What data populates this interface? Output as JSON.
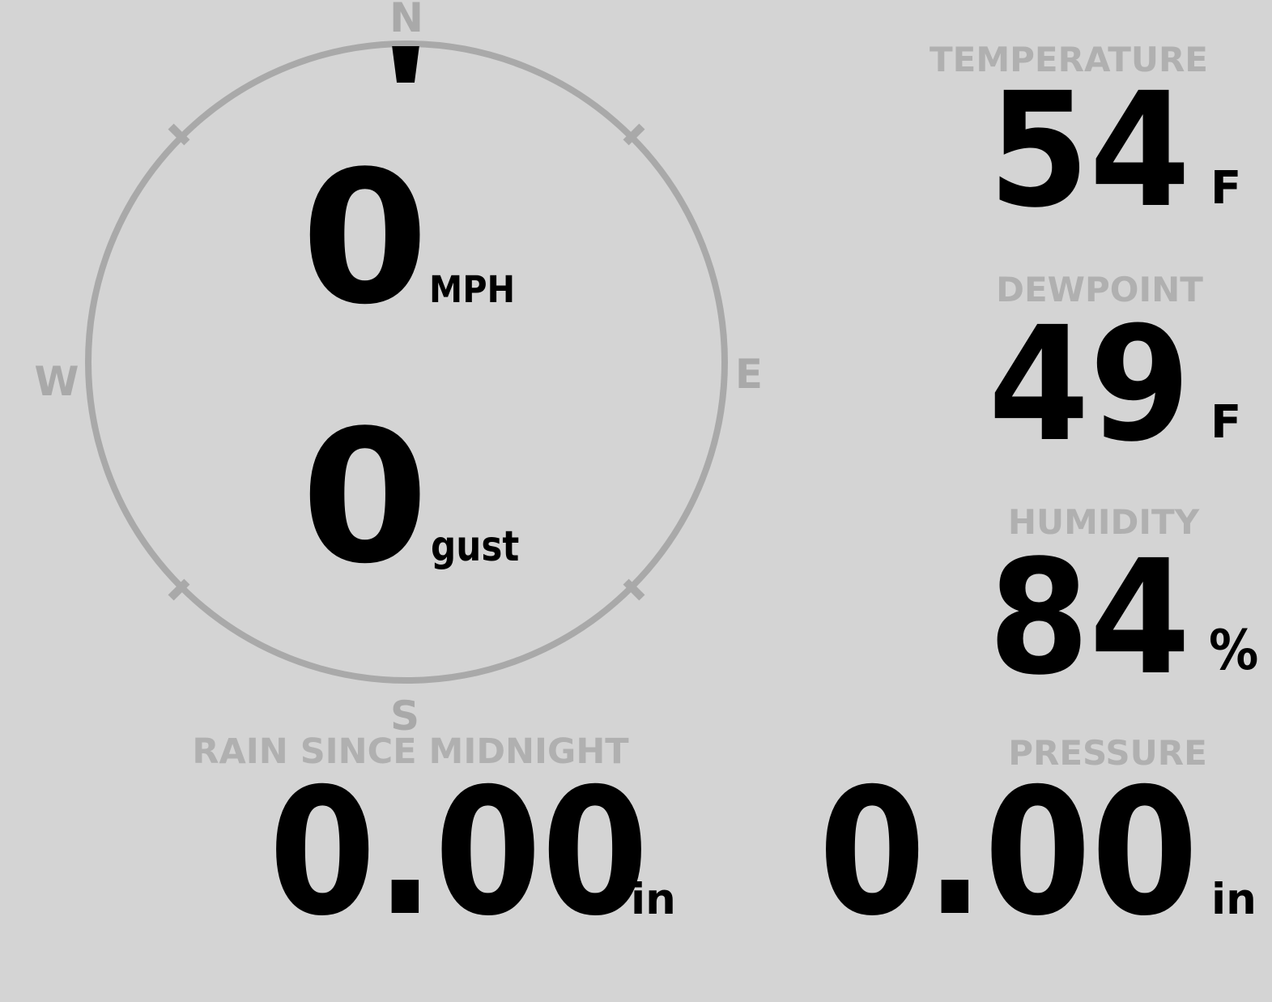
{
  "theme": {
    "background": "#d4d4d4",
    "gauge_gray": "#a9a9a9",
    "label_gray": "#b0b0b0",
    "value_black": "#000000"
  },
  "wind": {
    "speed": {
      "value": "0",
      "unit": "MPH"
    },
    "gust": {
      "value": "0",
      "unit": "gust"
    },
    "compass": {
      "north": "N",
      "east": "E",
      "south": "S",
      "west": "W",
      "pointer_direction": "N"
    }
  },
  "temperature": {
    "label": "TEMPERATURE",
    "value": "54",
    "unit": "F"
  },
  "dewpoint": {
    "label": "DEWPOINT",
    "value": "49",
    "unit": "F"
  },
  "humidity": {
    "label": "HUMIDITY",
    "value": "84",
    "unit": "%"
  },
  "rain": {
    "label": "RAIN SINCE MIDNIGHT",
    "value": "0.00",
    "unit": "in"
  },
  "pressure": {
    "label": "PRESSURE",
    "value": "0.00",
    "unit": "in"
  }
}
